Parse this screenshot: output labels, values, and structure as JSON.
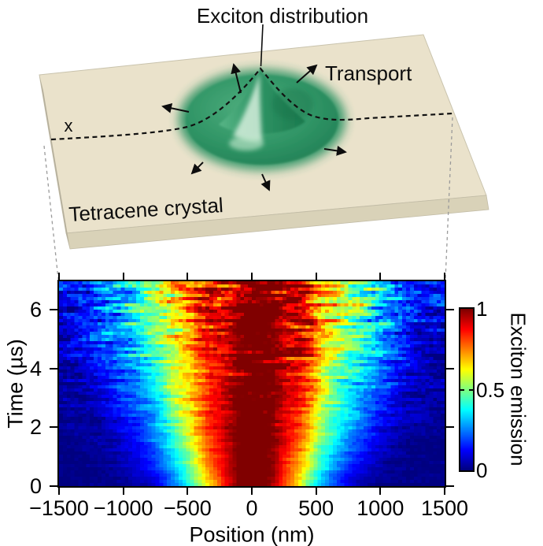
{
  "chart_data": {
    "type": "heatmap",
    "title": "",
    "xlabel": "Position (nm)",
    "ylabel": "Time (µs)",
    "x_range_nm": [
      -1500,
      1500
    ],
    "time_range_us": [
      0,
      7
    ],
    "x_ticks": [
      -1500,
      -1000,
      -500,
      0,
      500,
      1000,
      1500
    ],
    "x_tick_labels": [
      "−1500",
      "−1000",
      "−500",
      "0",
      "500",
      "1000",
      "1500"
    ],
    "y_ticks": [
      0,
      2,
      4,
      6
    ],
    "y_tick_labels": [
      "0",
      "2",
      "4",
      "6"
    ],
    "grid_on": false,
    "colormap": "jet",
    "colorbar": {
      "label": "Exciton emission",
      "ticks": [
        0,
        0.5,
        1
      ],
      "tick_labels": [
        "0",
        "0.5",
        "1"
      ],
      "range": [
        0,
        1
      ],
      "position": "right"
    },
    "model": {
      "description": "Normalized exciton emission vs position and time. Each time slice is a Gaussian profile peaking at 1 at x=0 whose width broadens diffusively with time; measurement noise grows at later times.",
      "sigma_nm_vs_time_us": [
        [
          0,
          350
        ],
        [
          1,
          418
        ],
        [
          2,
          477
        ],
        [
          3,
          529
        ],
        [
          4,
          577
        ],
        [
          5,
          620
        ],
        [
          6,
          661
        ],
        [
          7,
          700
        ]
      ],
      "grid": {
        "columns": 100,
        "rows": 65
      },
      "time_max_plotted_us": 6.96,
      "noise_seed": 20240613
    }
  },
  "illustration": {
    "title": "Exciton distribution",
    "transport_label": "Transport",
    "cut_axis_label": "x",
    "crystal_label": "Tetracene crystal",
    "colors": {
      "slab_top": "#eae2cb",
      "slab_front": "#d9d2b8",
      "slab_side": "#b5af9c",
      "dome_green": "#2f9465",
      "dome_dark": "#1e7950",
      "dome_highlight": "#d6efdd"
    }
  }
}
